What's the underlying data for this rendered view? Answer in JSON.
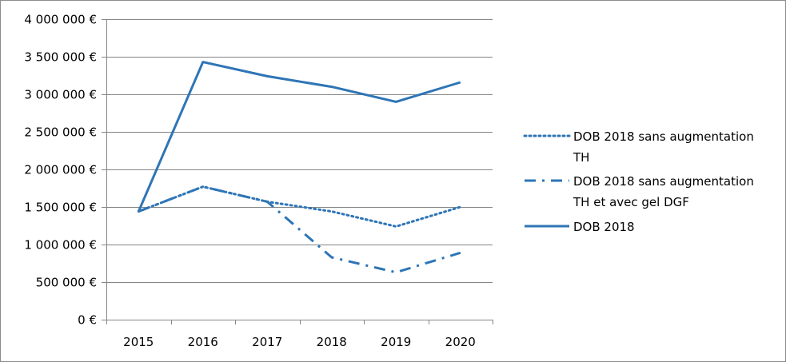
{
  "chart_data": {
    "type": "line",
    "title": "",
    "xlabel": "",
    "ylabel": "",
    "categories": [
      "2015",
      "2016",
      "2017",
      "2018",
      "2019",
      "2020"
    ],
    "ylim": [
      0,
      4000000
    ],
    "yticks": [
      0,
      500000,
      1000000,
      1500000,
      2000000,
      2500000,
      3000000,
      3500000,
      4000000
    ],
    "ytick_labels": [
      "0 €",
      "500 000 €",
      "1 000 000 €",
      "1 500 000 €",
      "2 000 000 €",
      "2 500 000 €",
      "3 000 000 €",
      "3 500 000 €",
      "4 000 000 €"
    ],
    "grid": true,
    "legend_position": "right",
    "series": [
      {
        "name_lines": [
          "DOB 2018 sans augmentation",
          "TH"
        ],
        "values": [
          1440000,
          1770000,
          1570000,
          1440000,
          1240000,
          1500000
        ],
        "style": "dotted",
        "color": "#2e75b6"
      },
      {
        "name_lines": [
          "DOB 2018 sans augmentation",
          "TH et avec gel DGF"
        ],
        "values": [
          1440000,
          1770000,
          1570000,
          830000,
          630000,
          890000
        ],
        "style": "dash-dot",
        "color": "#2e75b6"
      },
      {
        "name_lines": [
          "DOB 2018"
        ],
        "values": [
          1440000,
          3430000,
          3240000,
          3100000,
          2900000,
          3160000
        ],
        "style": "solid",
        "color": "#2e75b6"
      }
    ]
  }
}
